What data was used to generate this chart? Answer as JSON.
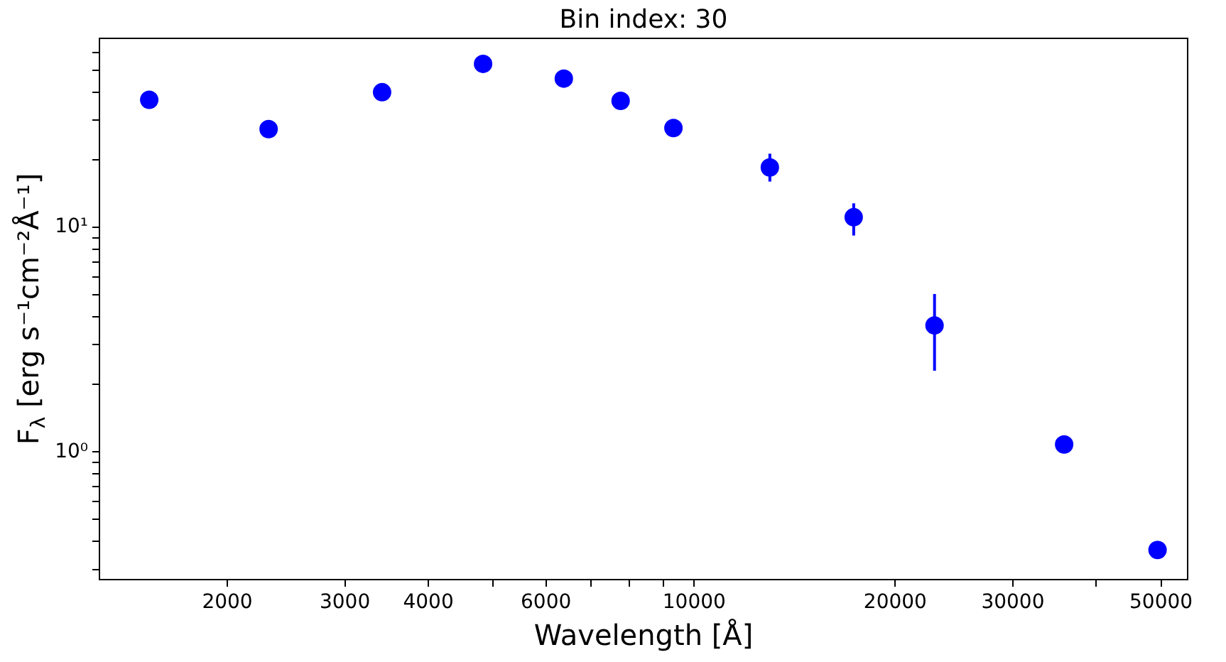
{
  "chart_data": {
    "type": "scatter",
    "title": "Bin index: 30",
    "xlabel": "Wavelength [Å]",
    "ylabel": "F$_{λ}$ [erg s⁻¹cm⁻²Å⁻¹]",
    "x": [
      1528,
      2306,
      3410,
      4830,
      6380,
      7760,
      9310,
      12980,
      17330,
      22900,
      35800,
      49400
    ],
    "series": [
      {
        "color": "#0000ff",
        "values": [
          37,
          27.4,
          40,
          53.5,
          46,
          36.6,
          27.7,
          18.5,
          11.1,
          3.66,
          1.08,
          0.366
        ],
        "errors": [
          null,
          null,
          null,
          null,
          null,
          null,
          null,
          [
            16,
            21.3
          ],
          [
            9.2,
            12.8
          ],
          [
            2.3,
            5.05
          ],
          null,
          null
        ]
      }
    ],
    "log": "xy",
    "marker": "circle",
    "grid": false,
    "legend": false,
    "xlim": [
      1287,
      54800
    ],
    "ylim": [
      0.27,
      69.5
    ],
    "xticks": [
      2000,
      3000,
      4000,
      {
        "value": 5000,
        "label": null
      },
      6000,
      {
        "value": 7000,
        "label": null
      },
      {
        "value": 8000,
        "label": null
      },
      {
        "value": 9000,
        "label": null
      },
      10000,
      20000,
      30000,
      {
        "value": 40000,
        "label": null
      },
      50000
    ],
    "yticks": [
      {
        "value": 0.3,
        "label": null
      },
      {
        "value": 0.4,
        "label": null
      },
      {
        "value": 0.5,
        "label": null
      },
      {
        "value": 0.6,
        "label": null
      },
      {
        "value": 0.7,
        "label": null
      },
      {
        "value": 0.8,
        "label": null
      },
      {
        "value": 0.9,
        "label": null
      },
      {
        "value": 1,
        "label": "10⁰"
      },
      {
        "value": 2,
        "label": null
      },
      {
        "value": 3,
        "label": null
      },
      {
        "value": 4,
        "label": null
      },
      {
        "value": 5,
        "label": null
      },
      {
        "value": 6,
        "label": null
      },
      {
        "value": 7,
        "label": null
      },
      {
        "value": 8,
        "label": null
      },
      {
        "value": 9,
        "label": null
      },
      {
        "value": 10,
        "label": "10¹"
      },
      {
        "value": 20,
        "label": null
      },
      {
        "value": 30,
        "label": null
      },
      {
        "value": 40,
        "label": null
      },
      {
        "value": 50,
        "label": null
      },
      {
        "value": 60,
        "label": null
      }
    ]
  }
}
